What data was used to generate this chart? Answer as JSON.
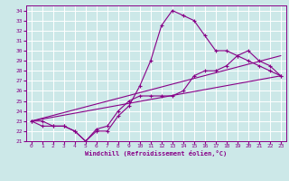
{
  "xlabel": "Windchill (Refroidissement éolien,°C)",
  "bg_color": "#cce8e8",
  "grid_color": "#ffffff",
  "line_color": "#880088",
  "xlim": [
    -0.5,
    23.5
  ],
  "ylim": [
    21,
    34.5
  ],
  "xticks": [
    0,
    1,
    2,
    3,
    4,
    5,
    6,
    7,
    8,
    9,
    10,
    11,
    12,
    13,
    14,
    15,
    16,
    17,
    18,
    19,
    20,
    21,
    22,
    23
  ],
  "yticks": [
    21,
    22,
    23,
    24,
    25,
    26,
    27,
    28,
    29,
    30,
    31,
    32,
    33,
    34
  ],
  "line1_x": [
    0,
    1,
    2,
    3,
    4,
    5,
    6,
    7,
    8,
    9,
    10,
    11,
    12,
    13,
    14,
    15,
    16,
    17,
    18,
    19,
    20,
    21,
    22,
    23
  ],
  "line1_y": [
    23.0,
    23.0,
    22.5,
    22.5,
    22.0,
    21.0,
    22.0,
    22.0,
    23.5,
    24.5,
    26.5,
    29.0,
    32.5,
    34.0,
    33.5,
    33.0,
    31.5,
    30.0,
    30.0,
    29.5,
    29.0,
    28.5,
    28.0,
    27.5
  ],
  "line2_x": [
    0,
    1,
    2,
    3,
    4,
    5,
    6,
    7,
    8,
    9,
    10,
    11,
    12,
    13,
    14,
    15,
    16,
    17,
    18,
    19,
    20,
    21,
    22,
    23
  ],
  "line2_y": [
    23.0,
    22.5,
    22.5,
    22.5,
    22.0,
    21.0,
    22.2,
    22.5,
    24.0,
    25.0,
    25.5,
    25.5,
    25.5,
    25.5,
    26.0,
    27.5,
    28.0,
    28.0,
    28.5,
    29.5,
    30.0,
    29.0,
    28.5,
    27.5
  ],
  "line3_x": [
    0,
    23
  ],
  "line3_y": [
    23.0,
    27.5
  ],
  "line4_x": [
    0,
    23
  ],
  "line4_y": [
    23.0,
    29.5
  ]
}
